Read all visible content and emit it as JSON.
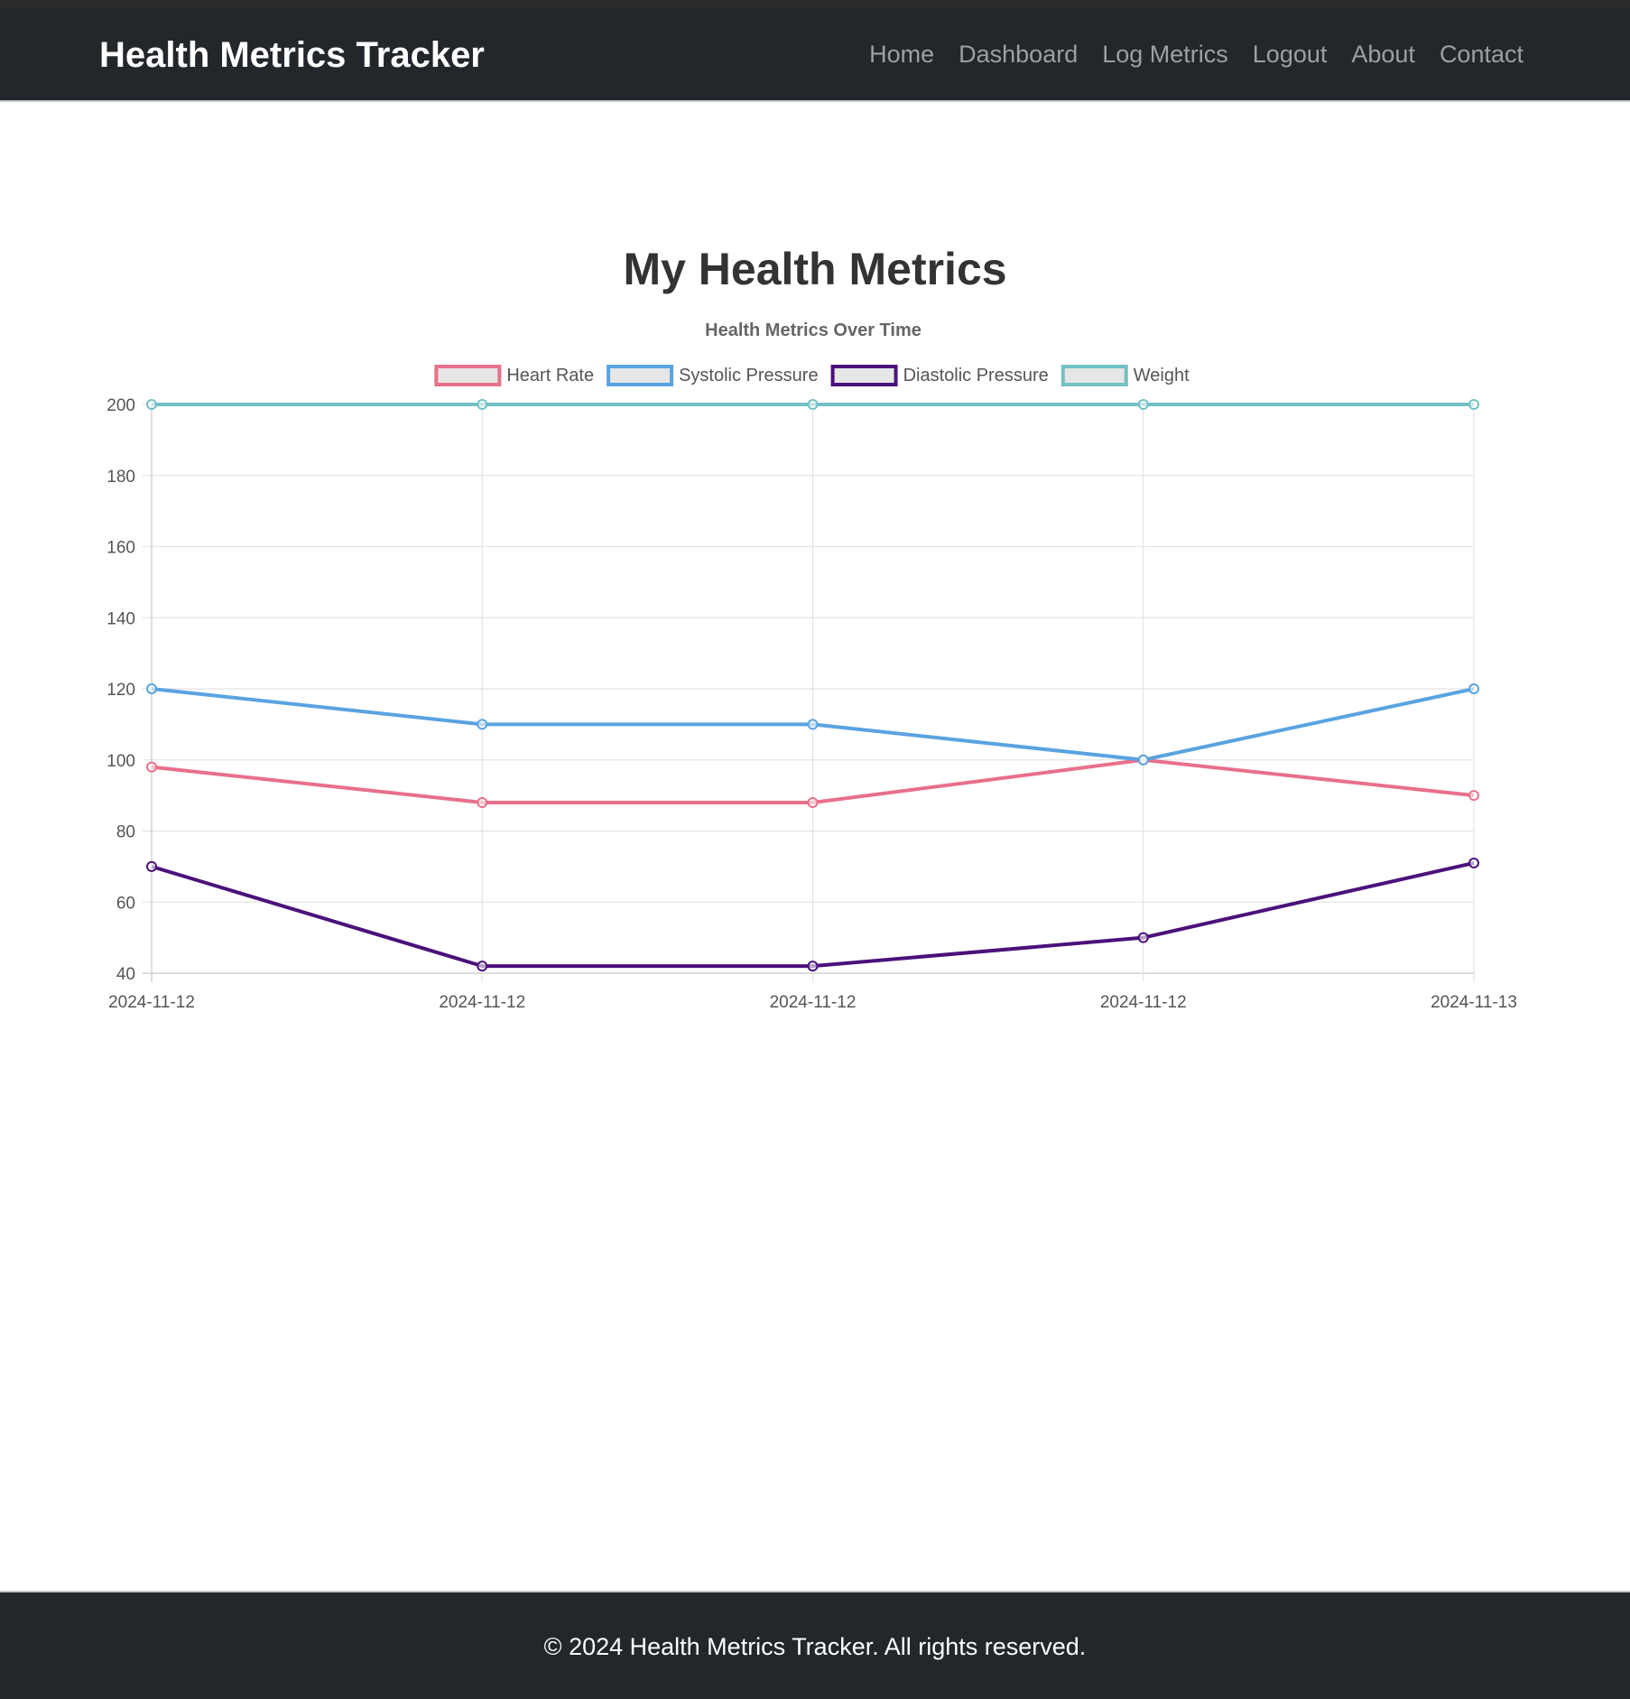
{
  "navbar": {
    "brand": "Health Metrics Tracker",
    "links": [
      "Home",
      "Dashboard",
      "Log Metrics",
      "Logout",
      "About",
      "Contact"
    ]
  },
  "main": {
    "title": "My Health Metrics"
  },
  "footer": {
    "text": "© 2024 Health Metrics Tracker. All rights reserved."
  },
  "colors": {
    "navbar_bg": "#23272b",
    "heart_rate": "#e8708a",
    "systolic": "#5aa3e0",
    "diastolic": "#4b117a",
    "weight": "#72c1c4"
  },
  "chart_data": {
    "type": "line",
    "title": "Health Metrics Over Time",
    "categories": [
      "2024-11-12",
      "2024-11-12",
      "2024-11-12",
      "2024-11-12",
      "2024-11-13"
    ],
    "series": [
      {
        "name": "Heart Rate",
        "color": "#e8708a",
        "values": [
          98,
          88,
          88,
          100,
          90
        ]
      },
      {
        "name": "Systolic Pressure",
        "color": "#5aa3e0",
        "values": [
          120,
          110,
          110,
          100,
          120
        ]
      },
      {
        "name": "Diastolic Pressure",
        "color": "#4b117a",
        "values": [
          70,
          42,
          42,
          50,
          71
        ]
      },
      {
        "name": "Weight",
        "color": "#72c1c4",
        "values": [
          200,
          200,
          200,
          200,
          200
        ]
      }
    ],
    "ylim": [
      40,
      200
    ],
    "yticks": [
      40,
      60,
      80,
      100,
      120,
      140,
      160,
      180,
      200
    ],
    "grid": true,
    "legend": "top-center",
    "xlabel": "",
    "ylabel": ""
  }
}
